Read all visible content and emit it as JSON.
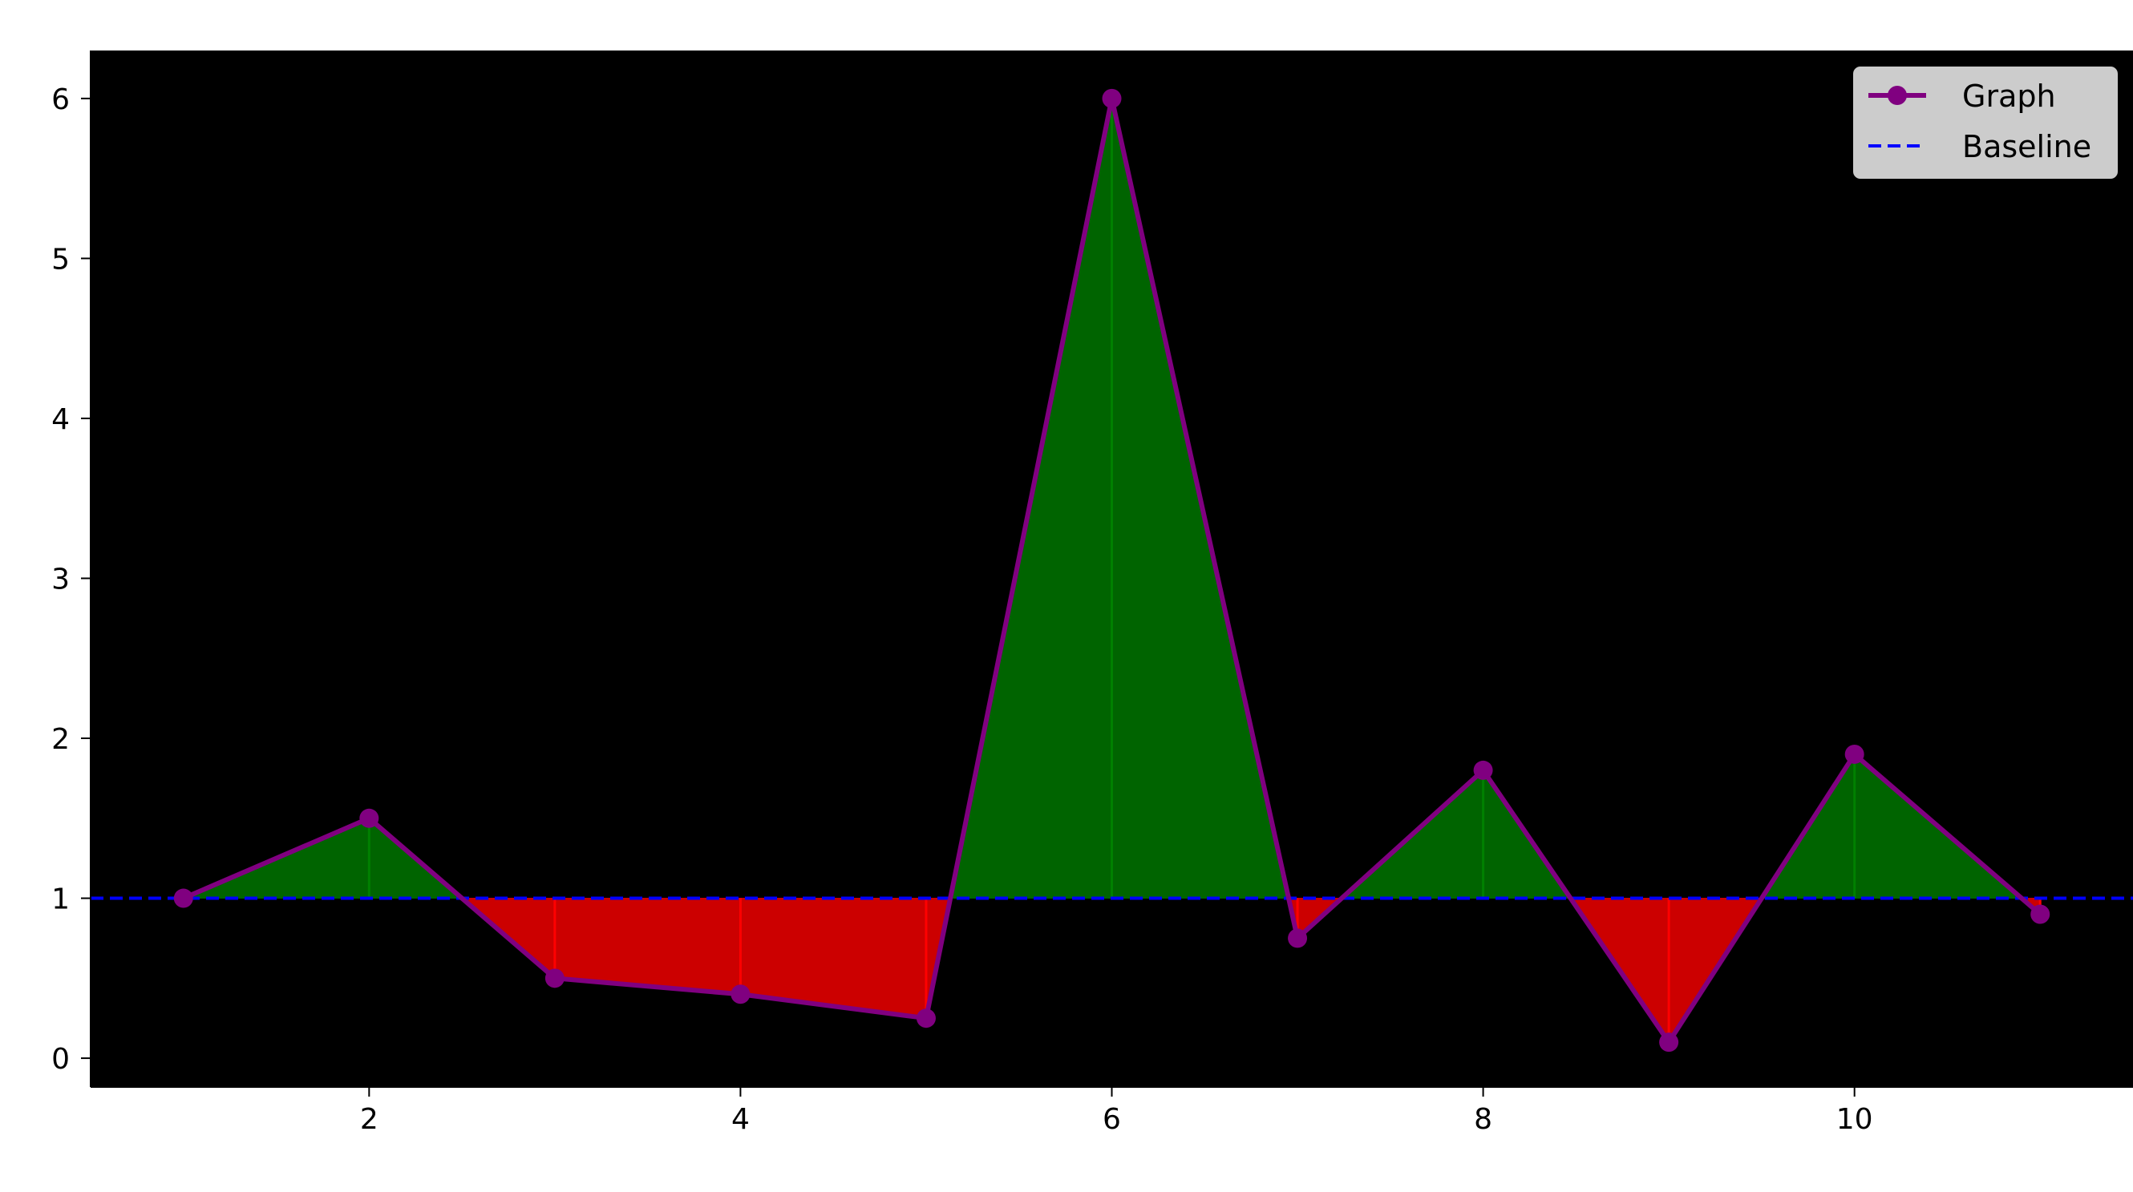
{
  "chart_data": {
    "type": "line",
    "title": "",
    "xlabel": "",
    "ylabel": "",
    "x": [
      1,
      2,
      3,
      4,
      5,
      6,
      7,
      8,
      9,
      10,
      11
    ],
    "series": [
      {
        "name": "Graph",
        "values": [
          1.0,
          1.5,
          0.5,
          0.4,
          0.25,
          6.0,
          0.75,
          1.8,
          0.1,
          1.9,
          0.9
        ],
        "color": "#800080",
        "marker": "circle"
      }
    ],
    "baseline": {
      "name": "Baseline",
      "value": 1,
      "color": "#0000ff",
      "style": "dashed"
    },
    "fill_above_color": "#006400",
    "fill_below_color": "#cc0000",
    "vline_above_color": "#008000",
    "vline_below_color": "#ff0000",
    "plot_background": "#000000",
    "xlim": [
      0.5,
      11.5
    ],
    "ylim": [
      -0.18,
      6.3
    ],
    "xticks": [
      2,
      4,
      6,
      8,
      10
    ],
    "xtick_labels": [
      "2",
      "4",
      "6",
      "8",
      "10"
    ],
    "yticks": [
      0,
      1,
      2,
      3,
      4,
      5,
      6
    ],
    "ytick_labels": [
      "0",
      "1",
      "2",
      "3",
      "4",
      "5",
      "6"
    ],
    "grid": false,
    "legend": {
      "placement": "top-right",
      "entries": [
        {
          "label": "Graph",
          "style": "line-marker",
          "color": "#800080"
        },
        {
          "label": "Baseline",
          "style": "dashed",
          "color": "#0000ff"
        }
      ]
    }
  }
}
